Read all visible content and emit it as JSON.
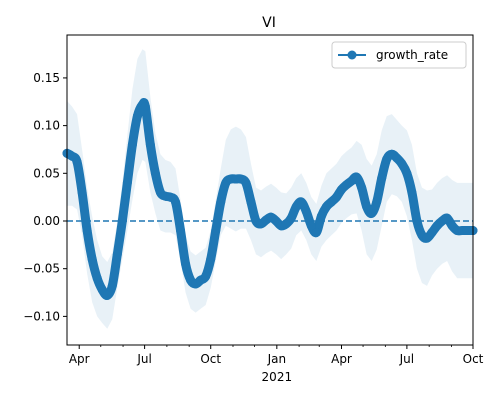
{
  "chart_data": {
    "type": "line",
    "title": "VI",
    "xlabel": "",
    "ylabel": "",
    "x_start": "2020-03-15",
    "x_end": "2021-10-01",
    "ylim": [
      -0.13,
      0.195
    ],
    "y_ticks": [
      -0.1,
      -0.05,
      0.0,
      0.05,
      0.1,
      0.15
    ],
    "y_tick_labels": [
      "−0.10",
      "−0.05",
      "0.00",
      "0.05",
      "0.10",
      "0.15"
    ],
    "x_major_ticks": [
      {
        "date": "2020-04-01",
        "label": "Apr"
      },
      {
        "date": "2020-07-01",
        "label": "Jul"
      },
      {
        "date": "2020-10-01",
        "label": "Oct"
      },
      {
        "date": "2021-01-01",
        "label": "Jan"
      },
      {
        "date": "2021-04-01",
        "label": "Apr"
      },
      {
        "date": "2021-07-01",
        "label": "Jul"
      },
      {
        "date": "2021-10-01",
        "label": "Oct"
      }
    ],
    "x_year_label": "2021",
    "grid": false,
    "legend_position": "upper right",
    "reference_line": {
      "y": 0.0,
      "style": "dashed",
      "color": "#1f77b4"
    },
    "colors": {
      "series": "#1f77b4",
      "band": "#1f77b4"
    },
    "series": [
      {
        "name": "growth_rate",
        "marker": "circle",
        "x": [
          "2020-03-15",
          "2020-03-22",
          "2020-03-29",
          "2020-04-05",
          "2020-04-12",
          "2020-04-19",
          "2020-04-26",
          "2020-05-03",
          "2020-05-10",
          "2020-05-17",
          "2020-05-24",
          "2020-05-31",
          "2020-06-07",
          "2020-06-14",
          "2020-06-21",
          "2020-06-28",
          "2020-07-02",
          "2020-07-09",
          "2020-07-16",
          "2020-07-23",
          "2020-07-30",
          "2020-08-06",
          "2020-08-13",
          "2020-08-20",
          "2020-08-27",
          "2020-09-03",
          "2020-09-10",
          "2020-09-17",
          "2020-09-24",
          "2020-10-01",
          "2020-10-08",
          "2020-10-15",
          "2020-10-22",
          "2020-10-29",
          "2020-11-05",
          "2020-11-12",
          "2020-11-19",
          "2020-11-26",
          "2020-12-03",
          "2020-12-10",
          "2020-12-17",
          "2020-12-24",
          "2020-12-31",
          "2021-01-07",
          "2021-01-14",
          "2021-01-21",
          "2021-01-28",
          "2021-02-04",
          "2021-02-11",
          "2021-02-18",
          "2021-02-25",
          "2021-03-04",
          "2021-03-11",
          "2021-03-18",
          "2021-03-25",
          "2021-04-01",
          "2021-04-08",
          "2021-04-15",
          "2021-04-22",
          "2021-04-29",
          "2021-05-06",
          "2021-05-13",
          "2021-05-20",
          "2021-05-27",
          "2021-06-03",
          "2021-06-10",
          "2021-06-17",
          "2021-06-24",
          "2021-07-01",
          "2021-07-08",
          "2021-07-15",
          "2021-07-22",
          "2021-07-29",
          "2021-08-05",
          "2021-08-12",
          "2021-08-19",
          "2021-08-26",
          "2021-09-02",
          "2021-09-09",
          "2021-09-16",
          "2021-09-23",
          "2021-10-01"
        ],
        "values": [
          0.071,
          0.068,
          0.062,
          0.03,
          -0.01,
          -0.04,
          -0.06,
          -0.072,
          -0.078,
          -0.068,
          -0.035,
          0.0,
          0.04,
          0.08,
          0.11,
          0.122,
          0.12,
          0.08,
          0.05,
          0.03,
          0.026,
          0.025,
          0.02,
          -0.01,
          -0.045,
          -0.062,
          -0.066,
          -0.062,
          -0.058,
          -0.04,
          -0.01,
          0.02,
          0.04,
          0.044,
          0.044,
          0.044,
          0.04,
          0.02,
          0.0,
          -0.003,
          0.001,
          0.004,
          0.0,
          -0.005,
          -0.003,
          0.003,
          0.015,
          0.02,
          0.01,
          -0.005,
          -0.012,
          0.005,
          0.015,
          0.02,
          0.025,
          0.033,
          0.038,
          0.042,
          0.046,
          0.035,
          0.015,
          0.008,
          0.02,
          0.045,
          0.065,
          0.07,
          0.066,
          0.06,
          0.05,
          0.03,
          0.0,
          -0.015,
          -0.018,
          -0.012,
          -0.005,
          0.0,
          0.003,
          -0.005,
          -0.01,
          -0.01,
          -0.01,
          -0.01
        ],
        "band_half_width": [
          0.055,
          0.052,
          0.05,
          0.045,
          0.045,
          0.045,
          0.04,
          0.035,
          0.035,
          0.035,
          0.035,
          0.04,
          0.05,
          0.058,
          0.06,
          0.058,
          0.058,
          0.05,
          0.042,
          0.04,
          0.038,
          0.037,
          0.035,
          0.032,
          0.03,
          0.03,
          0.03,
          0.03,
          0.03,
          0.03,
          0.032,
          0.035,
          0.045,
          0.052,
          0.055,
          0.052,
          0.048,
          0.04,
          0.035,
          0.035,
          0.035,
          0.035,
          0.035,
          0.035,
          0.032,
          0.032,
          0.03,
          0.03,
          0.03,
          0.03,
          0.03,
          0.032,
          0.035,
          0.035,
          0.035,
          0.035,
          0.035,
          0.035,
          0.038,
          0.045,
          0.05,
          0.05,
          0.05,
          0.05,
          0.045,
          0.042,
          0.04,
          0.04,
          0.045,
          0.05,
          0.05,
          0.05,
          0.05,
          0.045,
          0.045,
          0.045,
          0.045,
          0.048,
          0.05,
          0.05,
          0.05,
          0.05
        ]
      }
    ]
  }
}
